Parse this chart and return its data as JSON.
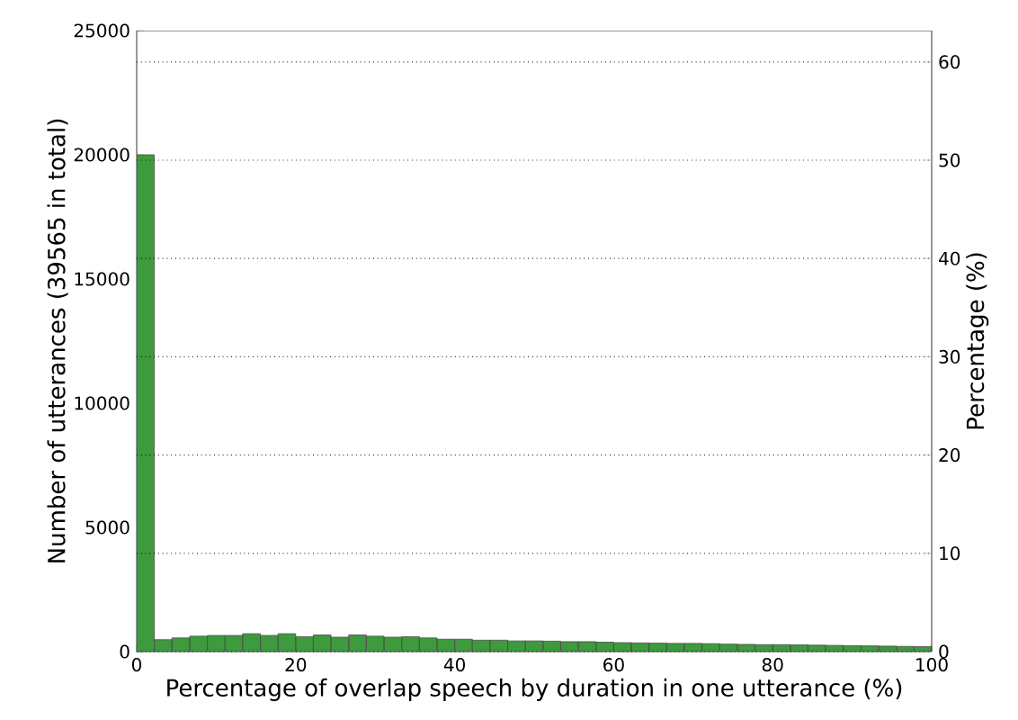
{
  "chart_data": {
    "type": "histogram",
    "xlabel": "Percentage of overlap speech by duration in one utterance (%)",
    "ylabel": "Number of utterances (39565 in total)",
    "y2label": "Percentage (%)",
    "bins": [
      0,
      2.22,
      4.44,
      6.67,
      8.89,
      11.11,
      13.33,
      15.56,
      17.78,
      20,
      22.22,
      24.44,
      26.67,
      28.89,
      31.11,
      33.33,
      35.56,
      37.78,
      40,
      42.22,
      44.44,
      46.67,
      48.89,
      51.11,
      53.33,
      55.56,
      57.78,
      60,
      62.22,
      64.44,
      66.67,
      68.89,
      71.11,
      73.33,
      75.56,
      77.78,
      80,
      82.22,
      84.44,
      86.67,
      88.89,
      91.11,
      93.33,
      95.56,
      97.78,
      100
    ],
    "values": [
      20000,
      480,
      550,
      620,
      650,
      650,
      720,
      650,
      720,
      600,
      670,
      580,
      670,
      620,
      580,
      600,
      550,
      500,
      500,
      460,
      460,
      430,
      430,
      420,
      400,
      400,
      380,
      360,
      350,
      340,
      330,
      330,
      320,
      300,
      290,
      280,
      280,
      270,
      260,
      250,
      240,
      230,
      220,
      210,
      200
    ],
    "color": "#3d9a3d",
    "xlim": [
      0,
      100
    ],
    "xticks": [
      0,
      20,
      40,
      60,
      80,
      100
    ],
    "ylim": [
      0,
      25000
    ],
    "yticks": [
      0,
      5000,
      10000,
      15000,
      20000,
      25000
    ],
    "y2lim": [
      0,
      63.19
    ],
    "y2ticks": [
      0,
      10,
      20,
      30,
      40,
      50,
      60
    ],
    "grid": "y2"
  }
}
